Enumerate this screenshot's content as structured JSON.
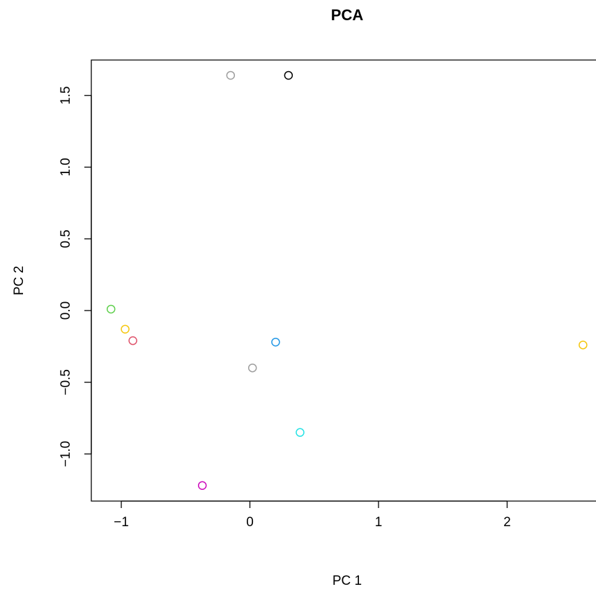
{
  "chart_data": {
    "type": "scatter",
    "title": "PCA",
    "xlabel": "PC 1",
    "ylabel": "PC 2",
    "xlim": [
      -1.2,
      2.6
    ],
    "ylim": [
      -1.32,
      1.75
    ],
    "x_ticks": [
      -1,
      0,
      1,
      2
    ],
    "x_tick_labels": [
      "−1",
      "0",
      "1",
      "2"
    ],
    "y_ticks": [
      -1.0,
      -0.5,
      0.0,
      0.5,
      1.0,
      1.5
    ],
    "y_tick_labels": [
      "−1.0",
      "−0.5",
      "0.0",
      "0.5",
      "1.0",
      "1.5"
    ],
    "marker": "open-circle",
    "grid": false,
    "points": [
      {
        "x": -0.15,
        "y": 1.64,
        "color": "#9E9E9E"
      },
      {
        "x": 0.3,
        "y": 1.64,
        "color": "#000000"
      },
      {
        "x": -1.08,
        "y": 0.01,
        "color": "#61D04F"
      },
      {
        "x": -0.97,
        "y": -0.13,
        "color": "#F5C710"
      },
      {
        "x": -0.91,
        "y": -0.21,
        "color": "#DF536B"
      },
      {
        "x": 0.2,
        "y": -0.22,
        "color": "#2297E6"
      },
      {
        "x": 0.02,
        "y": -0.4,
        "color": "#9E9E9E"
      },
      {
        "x": 0.39,
        "y": -0.85,
        "color": "#28E2E5"
      },
      {
        "x": -0.37,
        "y": -1.22,
        "color": "#CD0BBC"
      },
      {
        "x": 2.59,
        "y": -0.24,
        "color": "#F5C710"
      }
    ]
  }
}
